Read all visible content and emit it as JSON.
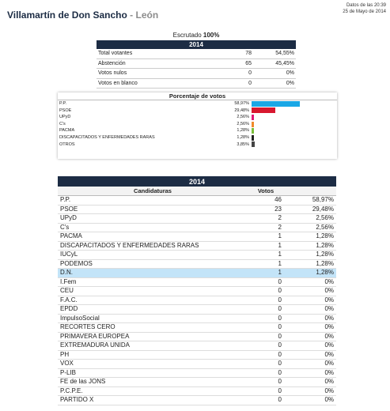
{
  "header": {
    "title": "Villamartín de Don Sancho",
    "separator": " - ",
    "subtitle": "León",
    "updated_line1": "Datos de las 20:39",
    "updated_line2": "25 de Mayo de 2014"
  },
  "scrutiny": {
    "label": "Escrutado ",
    "value": "100%"
  },
  "summary": {
    "year": "2014",
    "rows": [
      {
        "label": "Total votantes",
        "count": "78",
        "pct": "54,55%"
      },
      {
        "label": "Abstención",
        "count": "65",
        "pct": "45,45%"
      },
      {
        "label": "Votos nulos",
        "count": "0",
        "pct": "0%"
      },
      {
        "label": "Votos en blanco",
        "count": "0",
        "pct": "0%"
      }
    ]
  },
  "chart_data": {
    "type": "bar",
    "title": "Porcentaje de votos",
    "xlim": [
      0,
      100
    ],
    "categories": [
      "P.P.",
      "PSOE",
      "UPyD",
      "C's",
      "PACMA",
      "DISCAPACITADOS Y ENFERMEDADES RARAS",
      "OTROS"
    ],
    "values": [
      58.97,
      29.48,
      2.56,
      2.56,
      1.28,
      1.28,
      3.85
    ],
    "labels": [
      "58,97%",
      "29,48%",
      "2,56%",
      "2,56%",
      "1,28%",
      "1,28%",
      "3,85%"
    ],
    "colors": [
      "#1aa7e6",
      "#d8182f",
      "#e0197a",
      "#f08a2a",
      "#7cbf3a",
      "#222222",
      "#444444"
    ]
  },
  "results": {
    "year": "2014",
    "col_party": "Candidaturas",
    "col_votes": "Votos",
    "highlight_color": "#c3e4f8",
    "rows": [
      {
        "party": "P.P.",
        "votes": "46",
        "pct": "58,97%"
      },
      {
        "party": "PSOE",
        "votes": "23",
        "pct": "29,48%"
      },
      {
        "party": "UPyD",
        "votes": "2",
        "pct": "2,56%"
      },
      {
        "party": "C's",
        "votes": "2",
        "pct": "2,56%"
      },
      {
        "party": "PACMA",
        "votes": "1",
        "pct": "1,28%"
      },
      {
        "party": "DISCAPACITADOS Y ENFERMEDADES RARAS",
        "votes": "1",
        "pct": "1,28%"
      },
      {
        "party": "IUCyL",
        "votes": "1",
        "pct": "1,28%"
      },
      {
        "party": "PODEMOS",
        "votes": "1",
        "pct": "1,28%"
      },
      {
        "party": "D.N.",
        "votes": "1",
        "pct": "1,28%",
        "highlight": true
      },
      {
        "party": "I.Fem",
        "votes": "0",
        "pct": "0%"
      },
      {
        "party": "CEU",
        "votes": "0",
        "pct": "0%"
      },
      {
        "party": "F.A.C.",
        "votes": "0",
        "pct": "0%"
      },
      {
        "party": "EPDD",
        "votes": "0",
        "pct": "0%"
      },
      {
        "party": "ImpulsoSocial",
        "votes": "0",
        "pct": "0%"
      },
      {
        "party": "RECORTES CERO",
        "votes": "0",
        "pct": "0%"
      },
      {
        "party": "PRIMAVERA EUROPEA",
        "votes": "0",
        "pct": "0%"
      },
      {
        "party": "EXTREMADURA UNIDA",
        "votes": "0",
        "pct": "0%"
      },
      {
        "party": "PH",
        "votes": "0",
        "pct": "0%"
      },
      {
        "party": "VOX",
        "votes": "0",
        "pct": "0%"
      },
      {
        "party": "P-LIB",
        "votes": "0",
        "pct": "0%"
      },
      {
        "party": "FE de las JONS",
        "votes": "0",
        "pct": "0%"
      },
      {
        "party": "P.C.P.E.",
        "votes": "0",
        "pct": "0%"
      },
      {
        "party": "PARTIDO X",
        "votes": "0",
        "pct": "0%"
      }
    ]
  }
}
